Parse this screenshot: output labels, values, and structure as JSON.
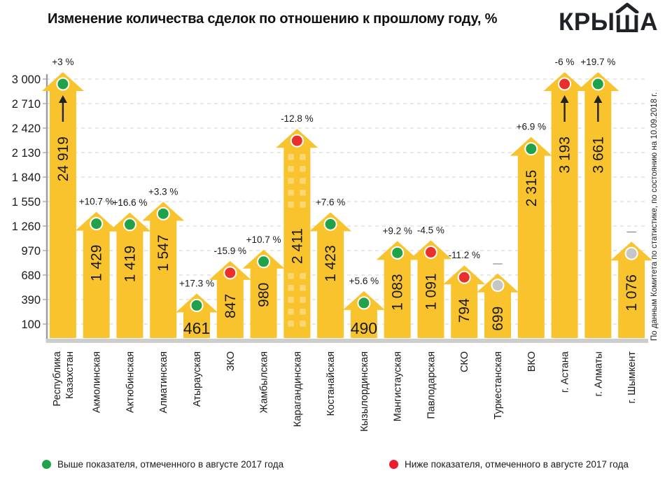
{
  "header": {
    "title": "Изменение количества сделок по отношению к прошлому году, %",
    "logo": {
      "text": "КРЫША",
      "roof_char_index": 3
    }
  },
  "source": {
    "note": "По данным Комитета по статистике, по состоянию на 10.09.2018 г."
  },
  "legend": [
    {
      "color": "#1fa24a",
      "label": "Выше показателя, отмеченного в августе 2017 года"
    },
    {
      "color": "#ed1c2e",
      "label": "Ниже показателя, отмеченного в августе 2017 года"
    }
  ],
  "colors": {
    "bar": "#F9C32D",
    "window": "#FBD674",
    "above": "#1fa24a",
    "below": "#E8312E",
    "neutral": "#C6C6C6",
    "dot_ring": "#ffffff",
    "text": "#1a1a1a",
    "grid": "#DBDBDB",
    "axis": "#9b9b9b",
    "baseline": "#CDCDCD",
    "arrow": "#222222",
    "dash": "#6b6b6b"
  },
  "chart_data": {
    "type": "bar",
    "title": "Изменение количества сделок по отношению к прошлому году, %",
    "ylabel": "",
    "xlabel": "",
    "ylim": [
      100,
      3000
    ],
    "grid": "dashed-horizontal",
    "legend_position": "bottom",
    "yticks": [
      {
        "value": 3000,
        "label": "3 000"
      },
      {
        "value": 2710,
        "label": "2 710"
      },
      {
        "value": 2420,
        "label": "2 420"
      },
      {
        "value": 2130,
        "label": "2 130"
      },
      {
        "value": 1840,
        "label": "1 840"
      },
      {
        "value": 1550,
        "label": "1 550"
      },
      {
        "value": 1260,
        "label": "1 260"
      },
      {
        "value": 970,
        "label": "970"
      },
      {
        "value": 680,
        "label": "680"
      },
      {
        "value": 390,
        "label": "390"
      },
      {
        "value": 100,
        "label": "100"
      }
    ],
    "bars": [
      {
        "category": "Республика Казахстан",
        "category_lines": [
          "Республика",
          "Казахстан"
        ],
        "value": 24919,
        "value_label": "24 919",
        "change_label": "+3 %",
        "status": "above",
        "overflow": true
      },
      {
        "category": "Акмолинская",
        "value": 1429,
        "value_label": "1 429",
        "change_label": "+10.7 %",
        "status": "above"
      },
      {
        "category": "Актюбинская",
        "value": 1419,
        "value_label": "1 419",
        "change_label": "+16.6 %",
        "status": "above"
      },
      {
        "category": "Алматинская",
        "value": 1547,
        "value_label": "1 547",
        "change_label": "+3.3 %",
        "status": "above"
      },
      {
        "category": "Атырауская",
        "value": 461,
        "value_label": "461",
        "change_label": "+17.3 %",
        "status": "above",
        "value_horizontal": true
      },
      {
        "category": "ЗКО",
        "value": 847,
        "value_label": "847",
        "change_label": "-15.9 %",
        "status": "below"
      },
      {
        "category": "Жамбылская",
        "value": 980,
        "value_label": "980",
        "change_label": "+10.7 %",
        "status": "above"
      },
      {
        "category": "Карагандинская",
        "value": 2411,
        "value_label": "2 411",
        "change_label": "-12.8 %",
        "status": "below",
        "windows": true,
        "text_offset": 95
      },
      {
        "category": "Костанайская",
        "value": 1423,
        "value_label": "1 423",
        "change_label": "+7.6 %",
        "status": "above"
      },
      {
        "category": "Кызылординская",
        "value": 490,
        "value_label": "490",
        "change_label": "+5.6 %",
        "status": "above",
        "value_horizontal": true
      },
      {
        "category": "Мангистауская",
        "value": 1083,
        "value_label": "1 083",
        "change_label": "+9.2 %",
        "status": "above"
      },
      {
        "category": "Павлодарская",
        "value": 1091,
        "value_label": "1 091",
        "change_label": "-4.5 %",
        "status": "below"
      },
      {
        "category": "СКО",
        "value": 794,
        "value_label": "794",
        "change_label": "-11.2 %",
        "status": "below"
      },
      {
        "category": "Туркестанская",
        "value": 699,
        "value_label": "699",
        "change_label": "—",
        "status": "none"
      },
      {
        "category": "ВКО",
        "value": 2315,
        "value_label": "2 315",
        "change_label": "+6.9 %",
        "status": "above"
      },
      {
        "category": "г. Астана",
        "value": 3193,
        "value_label": "3 193",
        "change_label": "-6 %",
        "status": "below",
        "overflow": true
      },
      {
        "category": "г. Алматы",
        "value": 3661,
        "value_label": "3 661",
        "change_label": "+19.7 %",
        "status": "above",
        "overflow": true
      },
      {
        "category": "г. Шымкент",
        "value": 1076,
        "value_label": "1 076",
        "change_label": "—",
        "status": "none"
      }
    ]
  }
}
